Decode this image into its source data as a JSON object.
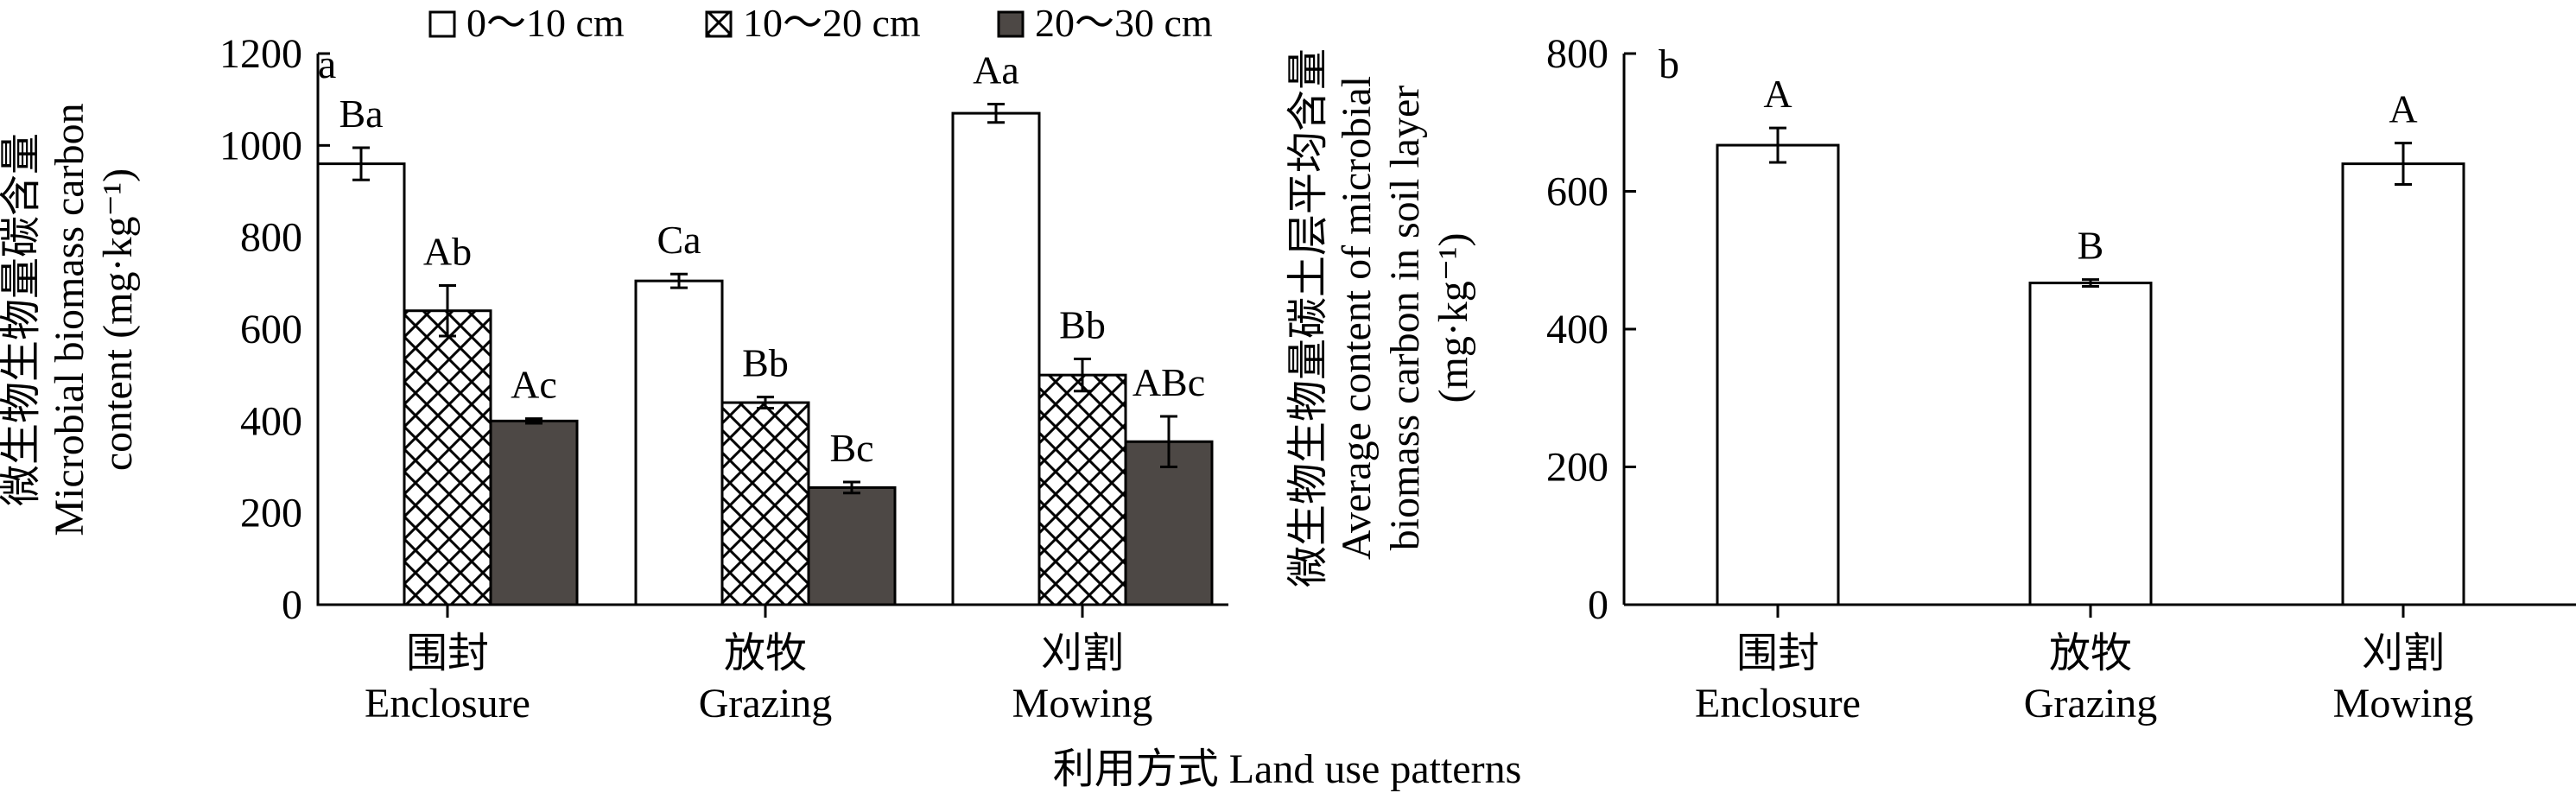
{
  "figure": {
    "xlabel_shared": "利用方式 Land use patterns"
  },
  "legend": {
    "items": [
      {
        "label": "0～10 cm",
        "pattern": "white"
      },
      {
        "label": "10～20 cm",
        "pattern": "crosshatch"
      },
      {
        "label": "20～30 cm",
        "pattern": "dark"
      }
    ]
  },
  "colors": {
    "dark_fill": "#4d4845",
    "stroke": "#000000",
    "white_fill": "#ffffff"
  },
  "chart_data": [
    {
      "type": "bar",
      "panel": "a",
      "categories": [
        {
          "zh": "围封",
          "en": "Enclosure"
        },
        {
          "zh": "放牧",
          "en": "Grazing"
        },
        {
          "zh": "刈割",
          "en": "Mowing"
        }
      ],
      "series": [
        {
          "name": "0～10 cm",
          "values": [
            960,
            705,
            1070
          ],
          "errors": [
            35,
            15,
            20
          ],
          "labels": [
            "Ba",
            "Ca",
            "Aa"
          ]
        },
        {
          "name": "10～20 cm",
          "values": [
            640,
            440,
            500
          ],
          "errors": [
            55,
            12,
            35
          ],
          "labels": [
            "Ab",
            "Bb",
            "Bb"
          ]
        },
        {
          "name": "20～30 cm",
          "values": [
            400,
            255,
            355
          ],
          "errors": [
            5,
            12,
            55
          ],
          "labels": [
            "Ac",
            "Bc",
            "ABc"
          ]
        }
      ],
      "ylabel": [
        "微生物生物量碳含量",
        "Microbial biomass carbon",
        "content (mg·kg⁻¹)"
      ],
      "ylim": [
        0,
        1200
      ],
      "yticks": [
        0,
        200,
        400,
        600,
        800,
        1000,
        1200
      ]
    },
    {
      "type": "bar",
      "panel": "b",
      "categories": [
        {
          "zh": "围封",
          "en": "Enclosure"
        },
        {
          "zh": "放牧",
          "en": "Grazing"
        },
        {
          "zh": "刈割",
          "en": "Mowing"
        }
      ],
      "values": [
        667,
        467,
        640
      ],
      "errors": [
        25,
        5,
        30
      ],
      "labels": [
        "A",
        "B",
        "A"
      ],
      "ylabel": [
        "微生物生物量碳土层平均含量",
        "Average content of microbial",
        "biomass carbon in soil layer",
        "(mg·kg⁻¹)"
      ],
      "ylim": [
        0,
        800
      ],
      "yticks": [
        0,
        200,
        400,
        600,
        800
      ]
    }
  ]
}
